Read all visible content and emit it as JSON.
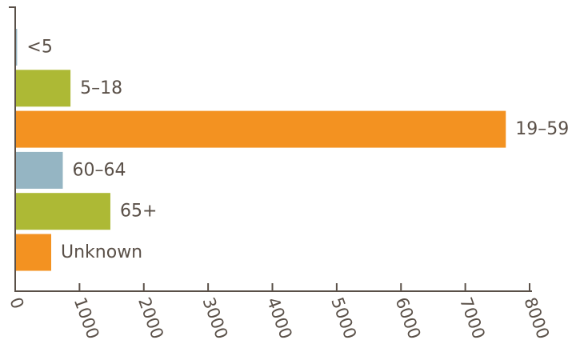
{
  "chart_data": {
    "type": "bar",
    "orientation": "horizontal",
    "categories": [
      "<5",
      "5–18",
      "19–59",
      "60–64",
      "65+",
      "Unknown"
    ],
    "values": [
      30,
      860,
      7630,
      740,
      1480,
      560
    ],
    "bar_colors": [
      "#95b5c3",
      "#adb935",
      "#f39221",
      "#95b5c3",
      "#adb935",
      "#f39221"
    ],
    "xlim": [
      0,
      8000
    ],
    "x_ticks": [
      0,
      1000,
      2000,
      3000,
      4000,
      5000,
      6000,
      7000,
      8000
    ],
    "x_tick_labels": [
      "0",
      "1000",
      "2000",
      "3000",
      "4000",
      "5000",
      "6000",
      "7000",
      "8000"
    ],
    "title": "",
    "xlabel": "",
    "ylabel": "",
    "grid": false,
    "legend": "none",
    "label_placement": "right-of-bar"
  }
}
